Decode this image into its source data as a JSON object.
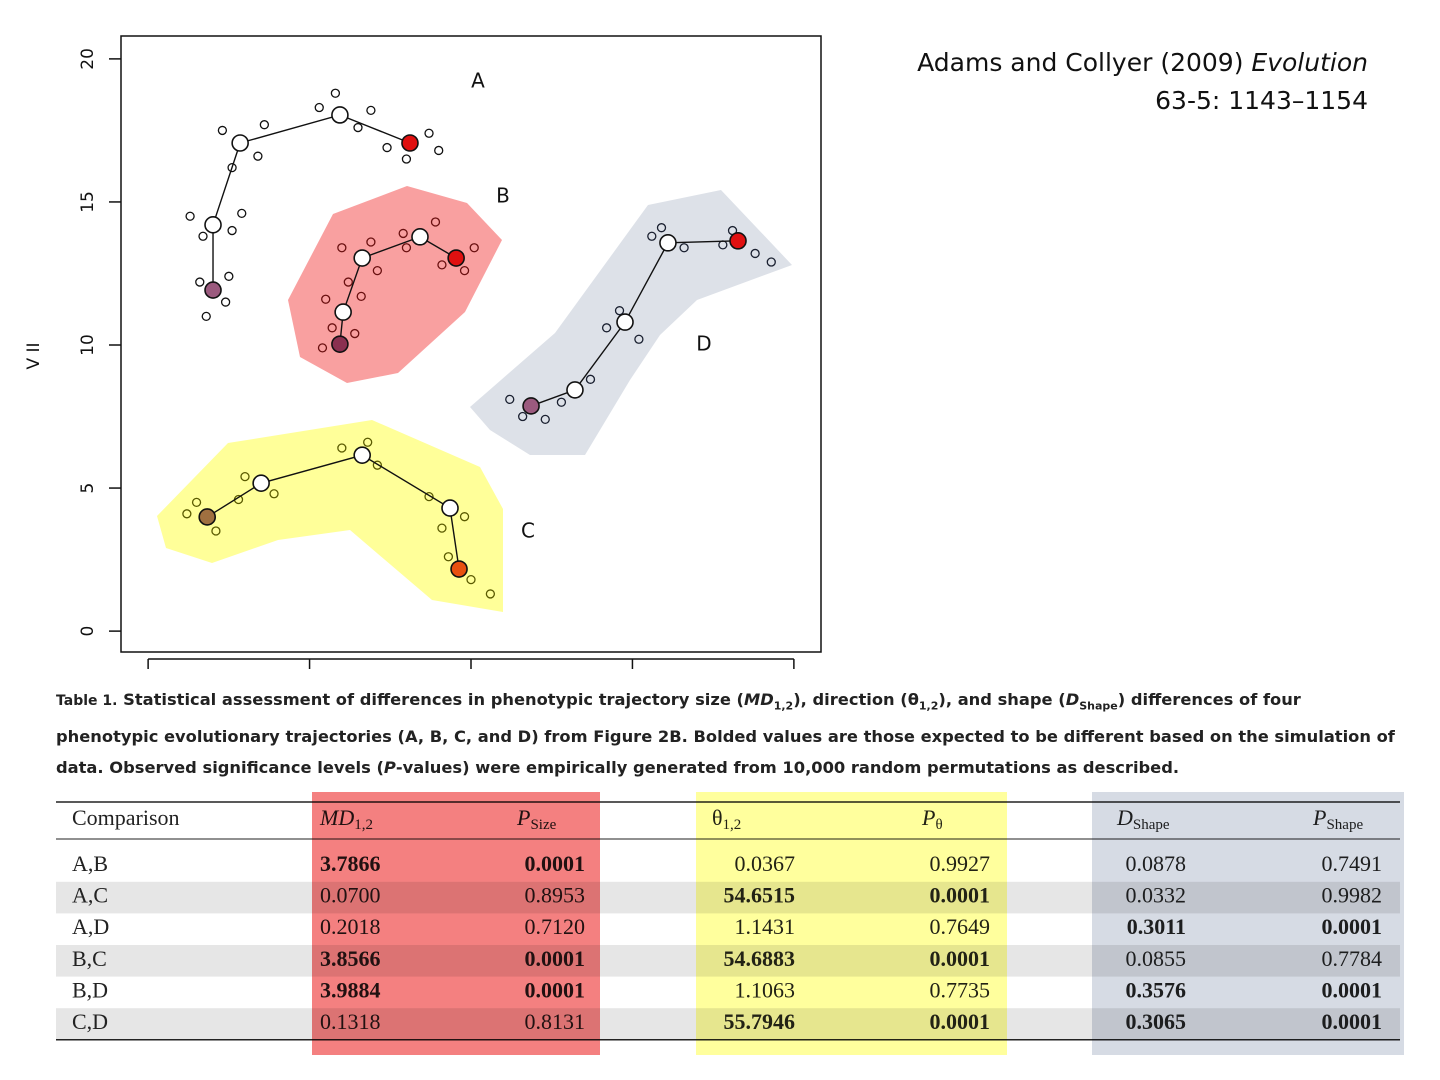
{
  "chart_data": {
    "type": "scatter",
    "y_label": "V II",
    "xlim": [
      -0.84,
      20.84
    ],
    "xticks": [
      0,
      5,
      10,
      15,
      20
    ],
    "show_xtick_labels": false,
    "ylim": [
      -0.73,
      20.8
    ],
    "yticks": [
      0,
      5,
      10,
      15,
      20
    ],
    "annotations": [
      "A",
      "B",
      "C",
      "D"
    ],
    "series": [
      {
        "mode": "markers",
        "color": "#111111",
        "x": [
          1.6,
          2.4,
          1.8,
          2.5,
          1.3,
          2.6,
          1.7,
          2.9,
          2.3,
          3.4,
          2.6,
          3.6,
          5.3,
          6.5,
          5.8,
          6.9,
          7.4,
          8.7,
          8.0,
          9.0
        ],
        "values": [
          12.2,
          11.5,
          11.0,
          12.4,
          14.5,
          14.0,
          13.8,
          14.6,
          17.5,
          16.6,
          16.2,
          17.7,
          18.3,
          17.6,
          18.8,
          18.2,
          16.9,
          17.4,
          16.5,
          16.8
        ]
      },
      {
        "mode": "lines+markers",
        "color": "#111111",
        "marker_fills": [
          "#9b5a7e",
          "#ffffff",
          "#ffffff",
          "#ffffff",
          "#e01010"
        ],
        "x": [
          2.01,
          2.01,
          2.85,
          5.94,
          8.11
        ],
        "values": [
          11.92,
          14.2,
          17.06,
          18.04,
          17.06
        ]
      },
      {
        "mode": "markers",
        "color": "#6a1010",
        "x": [
          5.4,
          6.4,
          5.7,
          6.6,
          5.5,
          6.2,
          6.0,
          7.1,
          6.9,
          7.9,
          8.9,
          8.0,
          9.1,
          10.1,
          9.8
        ],
        "values": [
          9.9,
          10.4,
          10.6,
          11.7,
          11.6,
          12.2,
          13.4,
          12.6,
          13.6,
          13.9,
          14.3,
          13.4,
          12.8,
          13.4,
          12.6
        ]
      },
      {
        "mode": "lines+markers",
        "color": "#111111",
        "marker_fills": [
          "#8a3050",
          "#ffffff",
          "#ffffff",
          "#ffffff",
          "#e01010"
        ],
        "x": [
          5.94,
          6.04,
          6.63,
          8.42,
          9.54
        ],
        "values": [
          10.03,
          11.15,
          13.04,
          13.78,
          13.04
        ]
      },
      {
        "mode": "markers",
        "color": "#5a5a00",
        "x": [
          1.2,
          2.1,
          1.5,
          3.0,
          3.9,
          2.8,
          6.0,
          7.1,
          6.8,
          8.7,
          9.8,
          9.1,
          9.3,
          10.0,
          10.6
        ],
        "values": [
          4.1,
          3.5,
          4.5,
          5.4,
          4.8,
          4.6,
          6.4,
          5.8,
          6.6,
          4.7,
          4.0,
          3.6,
          2.6,
          1.8,
          1.3
        ]
      },
      {
        "mode": "lines+markers",
        "color": "#111111",
        "marker_fills": [
          "#a07040",
          "#ffffff",
          "#ffffff",
          "#ffffff",
          "#e85010"
        ],
        "x": [
          1.83,
          3.5,
          6.63,
          9.35,
          9.63
        ],
        "values": [
          3.99,
          5.17,
          6.15,
          4.3,
          2.17
        ]
      },
      {
        "mode": "markers",
        "color": "#1a2030",
        "x": [
          11.2,
          12.3,
          11.6,
          13.7,
          12.8,
          14.2,
          15.2,
          14.6,
          15.6,
          16.6,
          15.9,
          17.8,
          18.8,
          18.1,
          19.3
        ],
        "values": [
          8.1,
          7.4,
          7.5,
          8.8,
          8.0,
          10.6,
          10.2,
          11.2,
          13.8,
          13.4,
          14.1,
          13.5,
          13.2,
          14.0,
          12.9
        ]
      },
      {
        "mode": "lines+markers",
        "color": "#111111",
        "marker_fills": [
          "#9b5a7e",
          "#ffffff",
          "#ffffff",
          "#ffffff",
          "#e01010"
        ],
        "x": [
          11.86,
          13.22,
          14.77,
          16.1,
          18.27
        ],
        "values": [
          7.87,
          8.43,
          10.8,
          13.57,
          13.64
        ]
      }
    ]
  },
  "citation": {
    "authors": "Adams and Collyer (2009)",
    "journal": "Evolution",
    "issue": "63-5: 1143–1154"
  },
  "caption": {
    "label": "Table 1.",
    "segments": [
      {
        "text": "Statistical assessment of differences in phenotypic trajectory size (",
        "style": ""
      },
      {
        "text": "MD",
        "style": "i"
      },
      {
        "text": "1,2",
        "style": "sub"
      },
      {
        "text": "), direction (θ",
        "style": ""
      },
      {
        "text": "1,2",
        "style": "sub"
      },
      {
        "text": "), and shape (",
        "style": ""
      },
      {
        "text": "D",
        "style": "i"
      },
      {
        "text": "Shape",
        "style": "sub"
      },
      {
        "text": ") differences of four phenotypic evolutionary trajectories (A, B, C, and D) from Figure 2B. Bolded values are those expected to be different based on the simulation of data. Observed significance levels (",
        "style": ""
      },
      {
        "text": "P",
        "style": "i"
      },
      {
        "text": "-values) were empirically generated from 10,000 random permutations as described.",
        "style": ""
      }
    ]
  },
  "table": {
    "header": [
      {
        "main": "Comparison",
        "italic": false
      },
      {
        "main": "MD",
        "sub": "1,2",
        "italic": true
      },
      {
        "main": "P",
        "sub": "Size",
        "italic": true
      },
      {
        "main": "θ",
        "sub": "1,2",
        "italic": false
      },
      {
        "main": "P",
        "sub": "θ",
        "italic": true
      },
      {
        "main": "D",
        "sub": "Shape",
        "italic": true
      },
      {
        "main": "P",
        "sub": "Shape",
        "italic": true
      }
    ],
    "rows": [
      {
        "cells": [
          "A,B",
          "3.7866",
          "0.0001",
          "0.0367",
          "0.9927",
          "0.0878",
          "0.7491"
        ],
        "bold": [
          false,
          true,
          true,
          false,
          false,
          false,
          false
        ]
      },
      {
        "cells": [
          "A,C",
          "0.0700",
          "0.8953",
          "54.6515",
          "0.0001",
          "0.0332",
          "0.9982"
        ],
        "bold": [
          false,
          false,
          false,
          true,
          true,
          false,
          false
        ]
      },
      {
        "cells": [
          "A,D",
          "0.2018",
          "0.7120",
          "1.1431",
          "0.7649",
          "0.3011",
          "0.0001"
        ],
        "bold": [
          false,
          false,
          false,
          false,
          false,
          true,
          true
        ]
      },
      {
        "cells": [
          "B,C",
          "3.8566",
          "0.0001",
          "54.6883",
          "0.0001",
          "0.0855",
          "0.7784"
        ],
        "bold": [
          false,
          true,
          true,
          true,
          true,
          false,
          false
        ]
      },
      {
        "cells": [
          "B,D",
          "3.9884",
          "0.0001",
          "1.1063",
          "0.7735",
          "0.3576",
          "0.0001"
        ],
        "bold": [
          false,
          true,
          true,
          false,
          false,
          true,
          true
        ]
      },
      {
        "cells": [
          "C,D",
          "0.1318",
          "0.8131",
          "55.7946",
          "0.0001",
          "0.3065",
          "0.0001"
        ],
        "bold": [
          false,
          false,
          false,
          true,
          true,
          true,
          true
        ]
      }
    ]
  }
}
